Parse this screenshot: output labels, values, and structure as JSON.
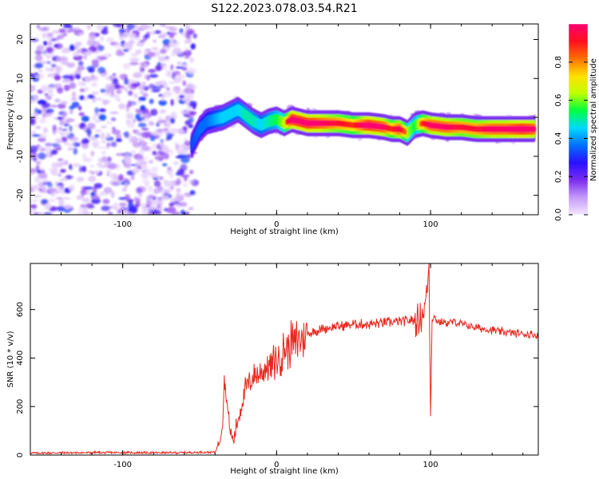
{
  "figure_title": "S122.2023.078.03.54.R21",
  "chart_data": [
    {
      "type": "heatmap",
      "xlabel": "Height of straight line (km)",
      "ylabel": "Frequency (Hz)",
      "xlim": [
        -160,
        170
      ],
      "ylim": [
        -25,
        24
      ],
      "xticks": [
        -100,
        0,
        100
      ],
      "yticks": [
        20,
        10,
        0,
        -10,
        -20
      ],
      "grid": false,
      "colorbar": {
        "label": "Normalized spectral amplitude",
        "range": [
          0,
          1
        ],
        "ticks": [
          "0.0",
          "0.2",
          "0.4",
          "0.6",
          "0.8"
        ],
        "colormap": [
          "#f3e6ff",
          "#c49af8",
          "#7b2cf0",
          "#2a10ff",
          "#0070ff",
          "#00d8ff",
          "#00ff40",
          "#c0ff00",
          "#ffe000",
          "#ff7000",
          "#ff1020",
          "#ff0070"
        ]
      },
      "noise_region_x": [
        -160,
        -53
      ],
      "ridge": {
        "x": [
          -55,
          -50,
          -45,
          -40,
          -35,
          -30,
          -25,
          -20,
          -15,
          -10,
          -5,
          0,
          5,
          10,
          20,
          30,
          40,
          50,
          60,
          70,
          75,
          80,
          85,
          90,
          95,
          100,
          110,
          120,
          130,
          140,
          150,
          160,
          168
        ],
        "y": [
          -7,
          -3,
          -1,
          -0.5,
          0,
          1,
          2,
          0.5,
          -1,
          -2,
          -1,
          -0.5,
          -1.5,
          -0.5,
          -1.5,
          -1.5,
          -1.5,
          -2,
          -2,
          -2.5,
          -3,
          -3,
          -4,
          -2,
          -1.5,
          -2,
          -2.5,
          -2.5,
          -3,
          -3,
          -3,
          -3,
          -3
        ],
        "amplitude": [
          0.35,
          0.4,
          0.4,
          0.45,
          0.5,
          0.5,
          0.5,
          0.55,
          0.55,
          0.5,
          0.55,
          0.6,
          0.7,
          0.95,
          0.95,
          0.9,
          0.85,
          0.8,
          0.95,
          0.9,
          0.8,
          0.9,
          0.7,
          0.6,
          0.8,
          0.9,
          0.9,
          0.85,
          0.85,
          0.9,
          0.9,
          0.95,
          0.9
        ]
      }
    },
    {
      "type": "line",
      "xlabel": "Height of straight line (km)",
      "ylabel": "SNR (10 * v/v)",
      "xlim": [
        -160,
        170
      ],
      "ylim": [
        0,
        790
      ],
      "xticks": [
        -100,
        0,
        100
      ],
      "yticks": [
        0,
        200,
        400,
        600
      ],
      "grid": false,
      "series": [
        {
          "color": "#e8281e",
          "x": [
            -160,
            -140,
            -120,
            -100,
            -80,
            -60,
            -40,
            -37,
            -35,
            -34,
            -32,
            -30,
            -28,
            -25,
            -22,
            -20,
            -15,
            -10,
            -5,
            0,
            5,
            10,
            15,
            20,
            25,
            30,
            40,
            50,
            60,
            70,
            80,
            85,
            90,
            93,
            96,
            98,
            99,
            100,
            101,
            102,
            105,
            110,
            115,
            120,
            130,
            140,
            150,
            160,
            170
          ],
          "y": [
            8,
            9,
            10,
            10,
            9,
            10,
            12,
            60,
            140,
            320,
            200,
            90,
            60,
            150,
            230,
            280,
            320,
            340,
            370,
            390,
            430,
            460,
            480,
            500,
            510,
            520,
            530,
            540,
            540,
            545,
            550,
            555,
            555,
            560,
            600,
            700,
            780,
            190,
            560,
            570,
            550,
            545,
            550,
            540,
            525,
            515,
            505,
            500,
            495
          ]
        }
      ]
    }
  ]
}
